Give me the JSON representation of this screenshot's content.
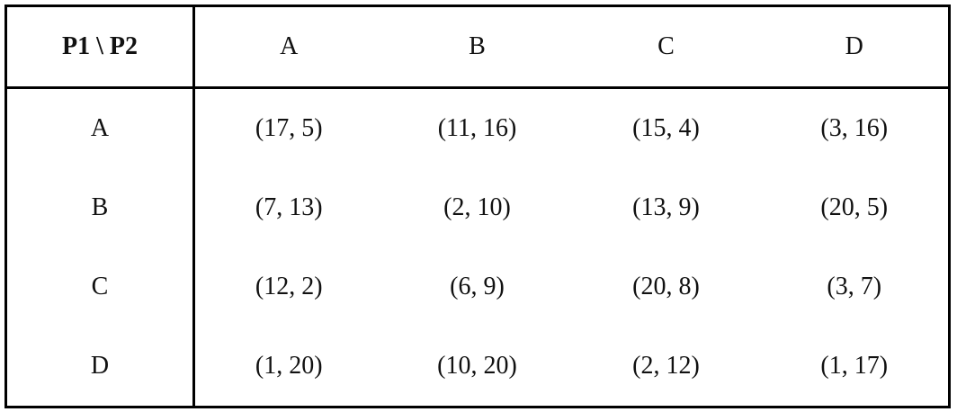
{
  "table": {
    "corner": "P1 \\ P2",
    "columns": [
      "A",
      "B",
      "C",
      "D"
    ],
    "rows": [
      {
        "label": "A",
        "cells": [
          "(17, 5)",
          "(11, 16)",
          "(15, 4)",
          "(3, 16)"
        ]
      },
      {
        "label": "B",
        "cells": [
          "(7, 13)",
          "(2, 10)",
          "(13, 9)",
          "(20, 5)"
        ]
      },
      {
        "label": "C",
        "cells": [
          "(12, 2)",
          "(6, 9)",
          "(20, 8)",
          "(3, 7)"
        ]
      },
      {
        "label": "D",
        "cells": [
          "(1, 20)",
          "(10, 20)",
          "(2, 12)",
          "(1, 17)"
        ]
      }
    ]
  }
}
